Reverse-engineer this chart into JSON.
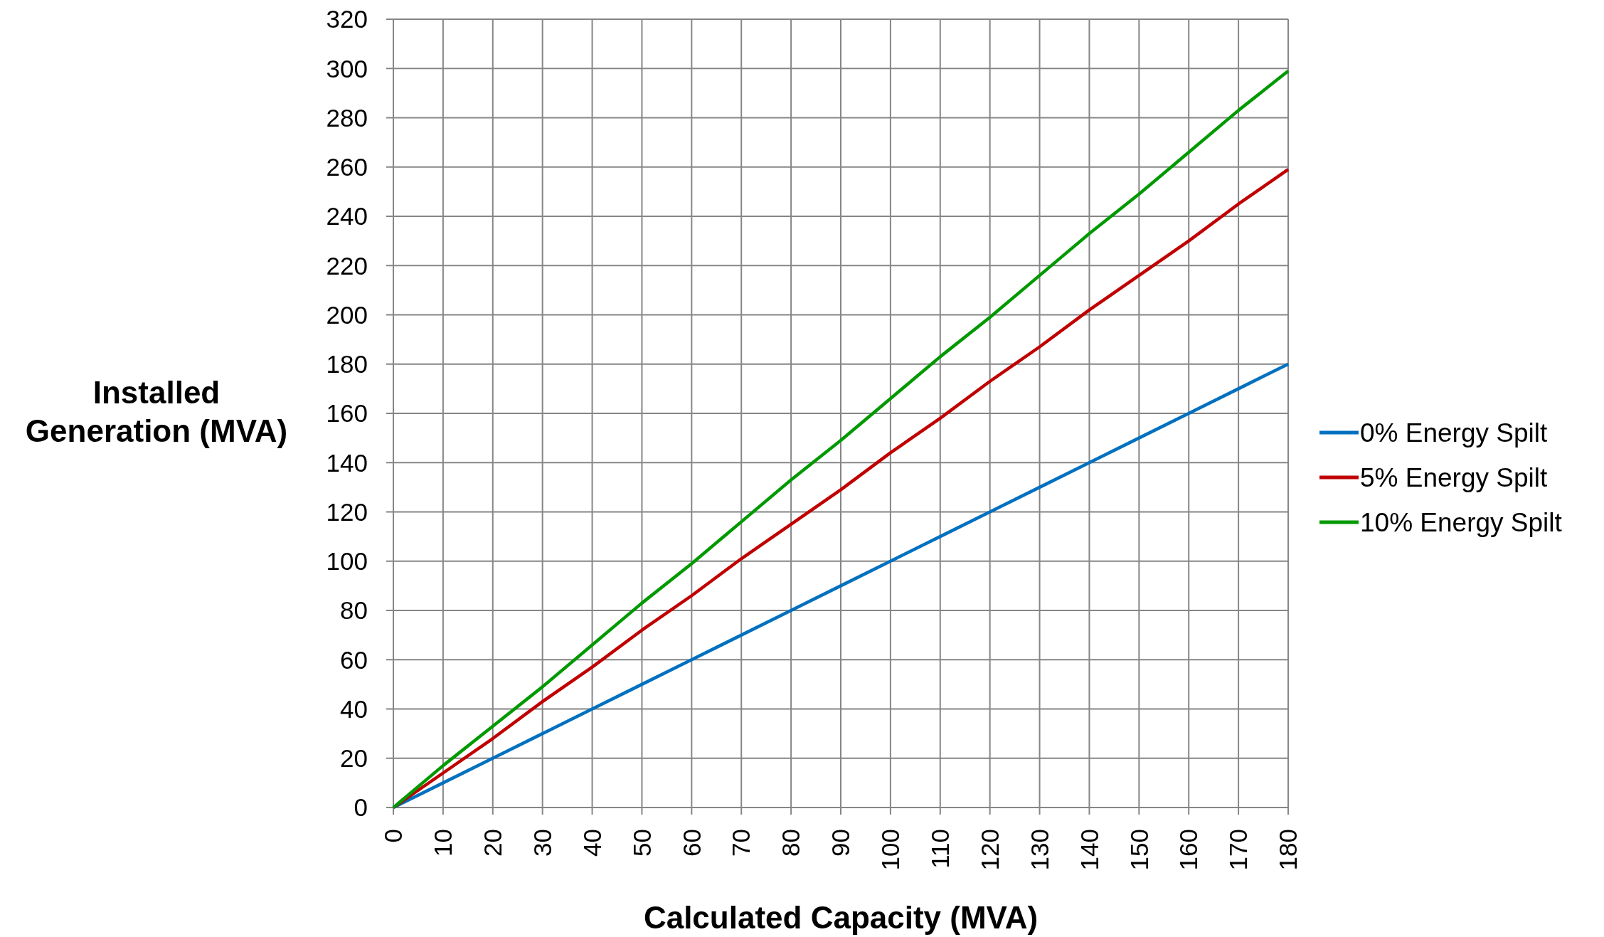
{
  "chart_data": {
    "type": "line",
    "xlabel": "Calculated Capacity (MVA)",
    "ylabel": "Installed Generation (MVA)",
    "x": [
      0,
      10,
      20,
      30,
      40,
      50,
      60,
      70,
      80,
      90,
      100,
      110,
      120,
      130,
      140,
      150,
      160,
      170,
      180
    ],
    "series": [
      {
        "name": "0% Energy Spilt",
        "color": "#0070c0",
        "values": [
          0,
          10,
          20,
          30,
          40,
          50,
          60,
          70,
          80,
          90,
          100,
          110,
          120,
          130,
          140,
          150,
          160,
          170,
          180
        ]
      },
      {
        "name": "5% Energy Spilt",
        "color": "#c00000",
        "values": [
          0,
          14,
          28,
          43,
          57,
          72,
          86,
          101,
          115,
          129,
          144,
          158,
          173,
          187,
          202,
          216,
          230,
          245,
          259
        ]
      },
      {
        "name": "10% Energy Spilt",
        "color": "#009900",
        "values": [
          0,
          17,
          33,
          49,
          66,
          83,
          99,
          116,
          133,
          149,
          166,
          183,
          199,
          216,
          233,
          249,
          266,
          283,
          299
        ]
      }
    ],
    "xlim": [
      0,
      180
    ],
    "xticks": [
      0,
      10,
      20,
      30,
      40,
      50,
      60,
      70,
      80,
      90,
      100,
      110,
      120,
      130,
      140,
      150,
      160,
      170,
      180
    ],
    "ylim": [
      0,
      320
    ],
    "yticks": [
      0,
      20,
      40,
      60,
      80,
      100,
      120,
      140,
      160,
      180,
      200,
      220,
      240,
      260,
      280,
      300,
      320
    ],
    "grid": true,
    "legend": "right",
    "marker": "none",
    "line_style": "solid"
  }
}
